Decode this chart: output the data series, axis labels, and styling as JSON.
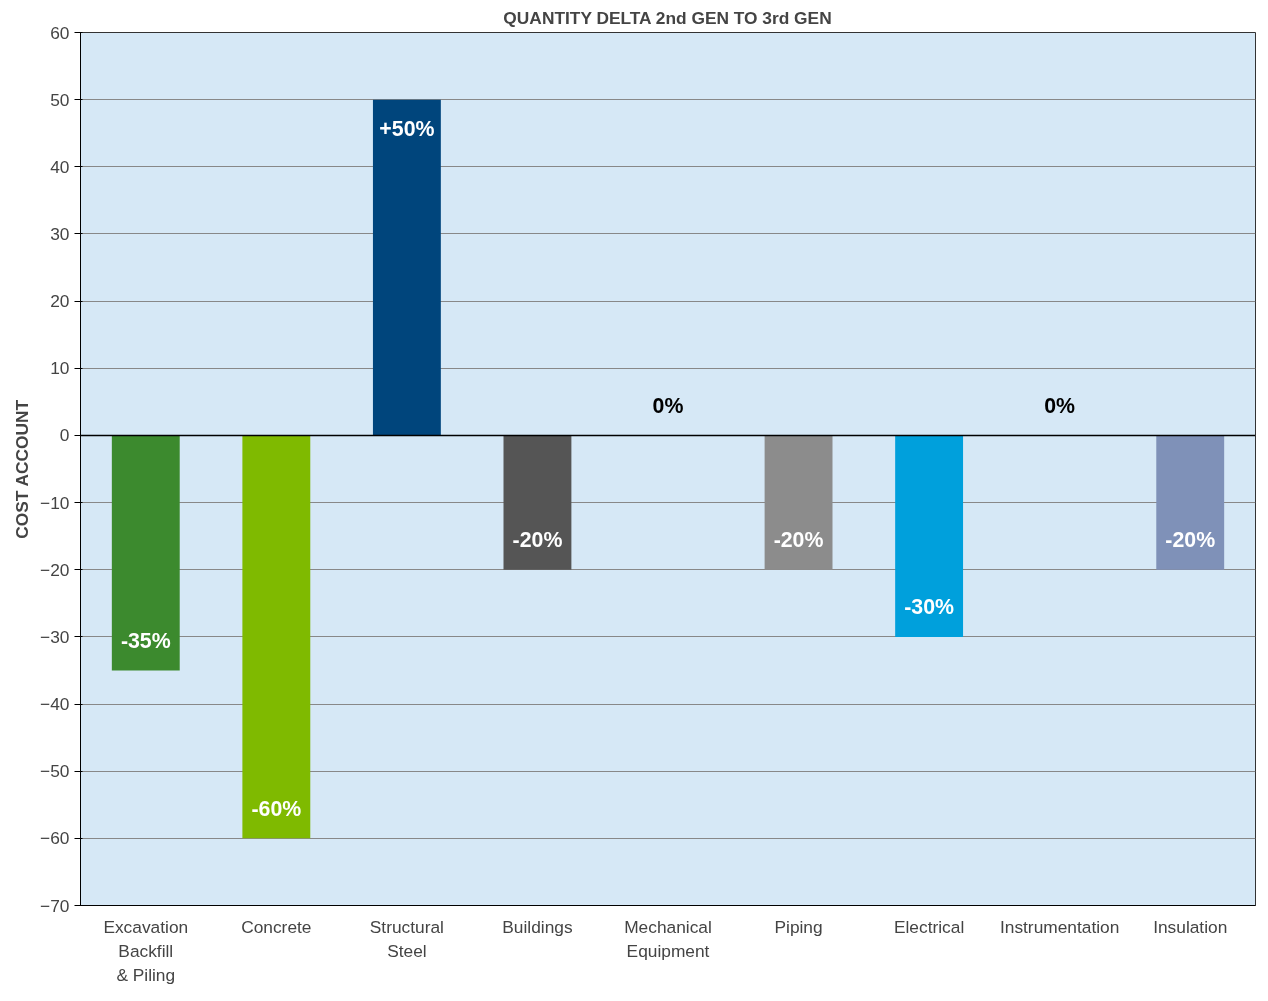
{
  "chart_data": {
    "type": "bar",
    "title": "QUANTITY DELTA 2nd GEN TO 3rd GEN",
    "ylabel": "COST ACCOUNT",
    "categories": [
      "Excavation\nBackfill\n& Piling",
      "Concrete",
      "Structural\nSteel",
      "Buildings",
      "Mechanical\nEquipment",
      "Piping",
      "Electrical",
      "Instrumentation",
      "Insulation"
    ],
    "values": [
      -35,
      -60,
      50,
      -20,
      0,
      -20,
      -30,
      0,
      -20
    ],
    "value_labels": [
      "-35%",
      "-60%",
      "+50%",
      "-20%",
      "0%",
      "-20%",
      "-30%",
      "0%",
      "-20%"
    ],
    "colors": [
      "#3c8a2e",
      "#7fba00",
      "#00457c",
      "#555555",
      "#888888",
      "#8c8c8c",
      "#00a0dc",
      "#888888",
      "#7f91b8"
    ],
    "ylim": [
      -70,
      60
    ],
    "yticks": [
      -70,
      -60,
      -50,
      -40,
      -30,
      -20,
      -10,
      0,
      10,
      20,
      30,
      40,
      50,
      60
    ],
    "grid": "y",
    "ref_lines": [
      {
        "axis": "y",
        "value": 0,
        "color": "#000000"
      }
    ]
  }
}
